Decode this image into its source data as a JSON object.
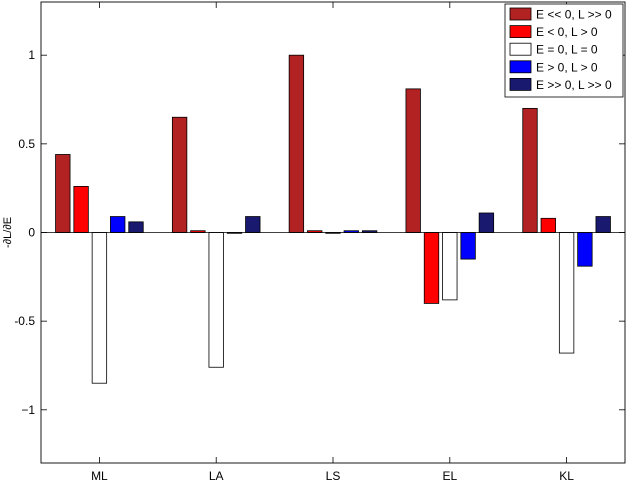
{
  "chart_data": {
    "type": "bar",
    "title": "",
    "xlabel": "",
    "ylabel": "-∂L/∂E",
    "categories": [
      "ML",
      "LA",
      "LS",
      "EL",
      "KL"
    ],
    "ylim": [
      -1.3,
      1.3
    ],
    "yticks": [
      -1,
      -0.5,
      0,
      0.5,
      1
    ],
    "ytick_labels": [
      "−1",
      "-0.5",
      "0",
      "0.5",
      "1"
    ],
    "grid": false,
    "legend_position": "top-right",
    "series": [
      {
        "name": "E << 0, L >> 0",
        "color": "#b22222",
        "values": [
          0.44,
          0.65,
          1.0,
          0.81,
          0.7
        ]
      },
      {
        "name": "E < 0, L > 0",
        "color": "#ff0000",
        "values": [
          0.26,
          0.01,
          0.01,
          -0.4,
          0.08
        ]
      },
      {
        "name": "E = 0, L = 0",
        "color": "#ffffff",
        "values": [
          -0.85,
          -0.76,
          0.0,
          -0.38,
          -0.68
        ]
      },
      {
        "name": "E > 0, L > 0",
        "color": "#0000ff",
        "values": [
          0.09,
          0.0,
          0.01,
          -0.15,
          -0.19
        ]
      },
      {
        "name": "E >> 0, L >> 0",
        "color": "#191970",
        "values": [
          0.06,
          0.09,
          0.01,
          0.11,
          0.09
        ]
      }
    ]
  }
}
